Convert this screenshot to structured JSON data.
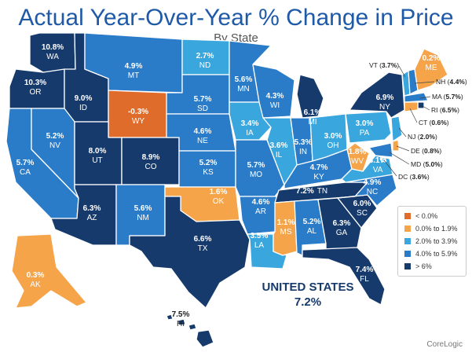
{
  "header": {
    "title": "Actual Year-Over-Year % Change in Price",
    "subtitle": "By State"
  },
  "colors": {
    "lt0": "#e06c2c",
    "r0_1": "#f5a44a",
    "r2_3": "#3aa6de",
    "r4_5": "#2a7bc8",
    "gt6": "#163a6b"
  },
  "legend": [
    {
      "label": "< 0.0%",
      "color": "#e06c2c"
    },
    {
      "label": "0.0% to 1.9%",
      "color": "#f5a44a"
    },
    {
      "label": "2.0% to 3.9%",
      "color": "#3aa6de"
    },
    {
      "label": "4.0% to 5.9%",
      "color": "#2a7bc8"
    },
    {
      "label": "> 6%",
      "color": "#163a6b"
    }
  ],
  "states": {
    "WA": {
      "abbr": "WA",
      "value": "10.8%"
    },
    "OR": {
      "abbr": "OR",
      "value": "10.3%"
    },
    "CA": {
      "abbr": "CA",
      "value": "5.7%"
    },
    "NV": {
      "abbr": "NV",
      "value": "5.2%"
    },
    "ID": {
      "abbr": "ID",
      "value": "9.0%"
    },
    "MT": {
      "abbr": "MT",
      "value": "4.9%"
    },
    "WY": {
      "abbr": "WY",
      "value": "-0.3%"
    },
    "UT": {
      "abbr": "UT",
      "value": "8.0%"
    },
    "CO": {
      "abbr": "CO",
      "value": "8.9%"
    },
    "AZ": {
      "abbr": "AZ",
      "value": "6.3%"
    },
    "NM": {
      "abbr": "NM",
      "value": "5.6%"
    },
    "ND": {
      "abbr": "ND",
      "value": "2.7%"
    },
    "SD": {
      "abbr": "SD",
      "value": "5.7%"
    },
    "NE": {
      "abbr": "NE",
      "value": "4.6%"
    },
    "KS": {
      "abbr": "KS",
      "value": "5.2%"
    },
    "OK": {
      "abbr": "OK",
      "value": "1.6%"
    },
    "TX": {
      "abbr": "TX",
      "value": "6.6%"
    },
    "MN": {
      "abbr": "MN",
      "value": "5.6%"
    },
    "IA": {
      "abbr": "IA",
      "value": "3.4%"
    },
    "MO": {
      "abbr": "MO",
      "value": "5.7%"
    },
    "AR": {
      "abbr": "AR",
      "value": "4.6%"
    },
    "LA": {
      "abbr": "LA",
      "value": "3.5%"
    },
    "WI": {
      "abbr": "WI",
      "value": "4.3%"
    },
    "IL": {
      "abbr": "IL",
      "value": "3.6%"
    },
    "MI": {
      "abbr": "MI",
      "value": "6.1%"
    },
    "IN": {
      "abbr": "IN",
      "value": "5.3%"
    },
    "OH": {
      "abbr": "OH",
      "value": "3.0%"
    },
    "KY": {
      "abbr": "KY",
      "value": "4.7%"
    },
    "TN": {
      "abbr": "TN",
      "value": "7.2%"
    },
    "MS": {
      "abbr": "MS",
      "value": "1.1%"
    },
    "AL": {
      "abbr": "AL",
      "value": "5.2%"
    },
    "GA": {
      "abbr": "GA",
      "value": "6.3%"
    },
    "FL": {
      "abbr": "FL",
      "value": "7.4%"
    },
    "SC": {
      "abbr": "SC",
      "value": "6.0%"
    },
    "NC": {
      "abbr": "NC",
      "value": "4.9%"
    },
    "VA": {
      "abbr": "VA",
      "value": "3.1%"
    },
    "WV": {
      "abbr": "WV",
      "value": "1.8%"
    },
    "PA": {
      "abbr": "PA",
      "value": "3.0%"
    },
    "NY": {
      "abbr": "NY",
      "value": "6.9%"
    },
    "ME": {
      "abbr": "ME",
      "value": "0.2%"
    },
    "AK": {
      "abbr": "AK",
      "value": "0.3%"
    },
    "HI": {
      "abbr": "HI",
      "value": "7.5%"
    }
  },
  "northeast": {
    "VT": {
      "abbr": "VT",
      "value": "3.7%"
    },
    "NH": {
      "abbr": "NH",
      "value": "4.4%"
    },
    "MA": {
      "abbr": "MA",
      "value": "5.7%"
    },
    "RI": {
      "abbr": "RI",
      "value": "6.5%"
    },
    "CT": {
      "abbr": "CT",
      "value": "0.6%"
    },
    "NJ": {
      "abbr": "NJ",
      "value": "2.0%"
    },
    "DE": {
      "abbr": "DE",
      "value": "0.8%"
    },
    "MD": {
      "abbr": "MD",
      "value": "5.0%"
    },
    "DC": {
      "abbr": "DC",
      "value": "3.6%"
    }
  },
  "national": {
    "label": "UNITED STATES",
    "value": "7.2%"
  },
  "source": "CoreLogic"
}
